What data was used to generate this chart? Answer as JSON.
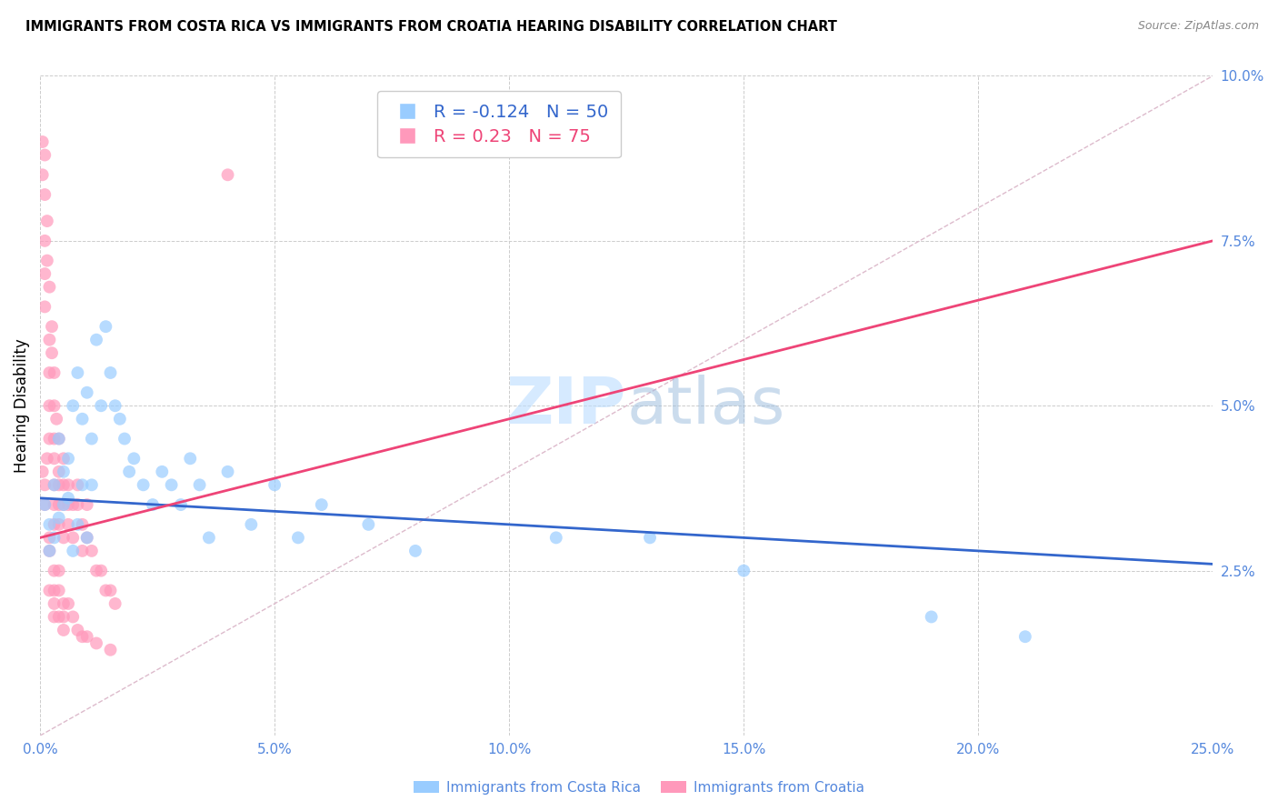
{
  "title": "IMMIGRANTS FROM COSTA RICA VS IMMIGRANTS FROM CROATIA HEARING DISABILITY CORRELATION CHART",
  "source": "Source: ZipAtlas.com",
  "ylabel_label": "Hearing Disability",
  "legend_label1": "Immigrants from Costa Rica",
  "legend_label2": "Immigrants from Croatia",
  "r1": -0.124,
  "n1": 50,
  "r2": 0.23,
  "n2": 75,
  "color1": "#99CCFF",
  "color2": "#FF99BB",
  "line_color1": "#3366CC",
  "line_color2": "#EE4477",
  "diagonal_color": "#DDBBCC",
  "xlim": [
    0.0,
    0.25
  ],
  "ylim": [
    0.0,
    0.1
  ],
  "xticks": [
    0.0,
    0.05,
    0.1,
    0.15,
    0.2,
    0.25
  ],
  "yticks": [
    0.0,
    0.025,
    0.05,
    0.075,
    0.1
  ],
  "xtick_labels": [
    "0.0%",
    "5.0%",
    "10.0%",
    "15.0%",
    "20.0%",
    "25.0%"
  ],
  "ytick_labels": [
    "",
    "2.5%",
    "5.0%",
    "7.5%",
    "10.0%"
  ],
  "costa_rica_x": [
    0.001,
    0.002,
    0.002,
    0.003,
    0.003,
    0.004,
    0.004,
    0.005,
    0.005,
    0.006,
    0.006,
    0.007,
    0.007,
    0.008,
    0.008,
    0.009,
    0.009,
    0.01,
    0.01,
    0.011,
    0.011,
    0.012,
    0.013,
    0.014,
    0.015,
    0.016,
    0.017,
    0.018,
    0.019,
    0.02,
    0.022,
    0.024,
    0.026,
    0.028,
    0.03,
    0.032,
    0.034,
    0.036,
    0.04,
    0.045,
    0.05,
    0.055,
    0.06,
    0.07,
    0.08,
    0.11,
    0.13,
    0.15,
    0.19,
    0.21
  ],
  "costa_rica_y": [
    0.035,
    0.032,
    0.028,
    0.038,
    0.03,
    0.045,
    0.033,
    0.04,
    0.035,
    0.042,
    0.036,
    0.05,
    0.028,
    0.055,
    0.032,
    0.048,
    0.038,
    0.052,
    0.03,
    0.045,
    0.038,
    0.06,
    0.05,
    0.062,
    0.055,
    0.05,
    0.048,
    0.045,
    0.04,
    0.042,
    0.038,
    0.035,
    0.04,
    0.038,
    0.035,
    0.042,
    0.038,
    0.03,
    0.04,
    0.032,
    0.038,
    0.03,
    0.035,
    0.032,
    0.028,
    0.03,
    0.03,
    0.025,
    0.018,
    0.015
  ],
  "croatia_x": [
    0.0005,
    0.0005,
    0.001,
    0.001,
    0.001,
    0.001,
    0.001,
    0.0015,
    0.0015,
    0.002,
    0.002,
    0.002,
    0.002,
    0.002,
    0.0025,
    0.0025,
    0.003,
    0.003,
    0.003,
    0.003,
    0.003,
    0.003,
    0.003,
    0.0035,
    0.004,
    0.004,
    0.004,
    0.004,
    0.004,
    0.005,
    0.005,
    0.005,
    0.005,
    0.006,
    0.006,
    0.006,
    0.007,
    0.007,
    0.008,
    0.008,
    0.009,
    0.009,
    0.01,
    0.01,
    0.011,
    0.012,
    0.013,
    0.014,
    0.015,
    0.016,
    0.0005,
    0.001,
    0.001,
    0.0015,
    0.002,
    0.002,
    0.003,
    0.003,
    0.004,
    0.004,
    0.005,
    0.005,
    0.006,
    0.007,
    0.008,
    0.009,
    0.01,
    0.012,
    0.015,
    0.003,
    0.002,
    0.003,
    0.004,
    0.005,
    0.04
  ],
  "croatia_y": [
    0.09,
    0.085,
    0.088,
    0.082,
    0.075,
    0.07,
    0.065,
    0.078,
    0.072,
    0.068,
    0.06,
    0.055,
    0.05,
    0.045,
    0.062,
    0.058,
    0.055,
    0.05,
    0.045,
    0.042,
    0.038,
    0.035,
    0.032,
    0.048,
    0.045,
    0.04,
    0.038,
    0.035,
    0.032,
    0.042,
    0.038,
    0.035,
    0.03,
    0.038,
    0.035,
    0.032,
    0.035,
    0.03,
    0.038,
    0.035,
    0.032,
    0.028,
    0.035,
    0.03,
    0.028,
    0.025,
    0.025,
    0.022,
    0.022,
    0.02,
    0.04,
    0.038,
    0.035,
    0.042,
    0.03,
    0.028,
    0.025,
    0.022,
    0.025,
    0.022,
    0.02,
    0.018,
    0.02,
    0.018,
    0.016,
    0.015,
    0.015,
    0.014,
    0.013,
    0.018,
    0.022,
    0.02,
    0.018,
    0.016,
    0.085
  ],
  "line1_x0": 0.0,
  "line1_x1": 0.25,
  "line1_y0": 0.036,
  "line1_y1": 0.026,
  "line2_x0": 0.0,
  "line2_x1": 0.25,
  "line2_y0": 0.03,
  "line2_y1": 0.075
}
